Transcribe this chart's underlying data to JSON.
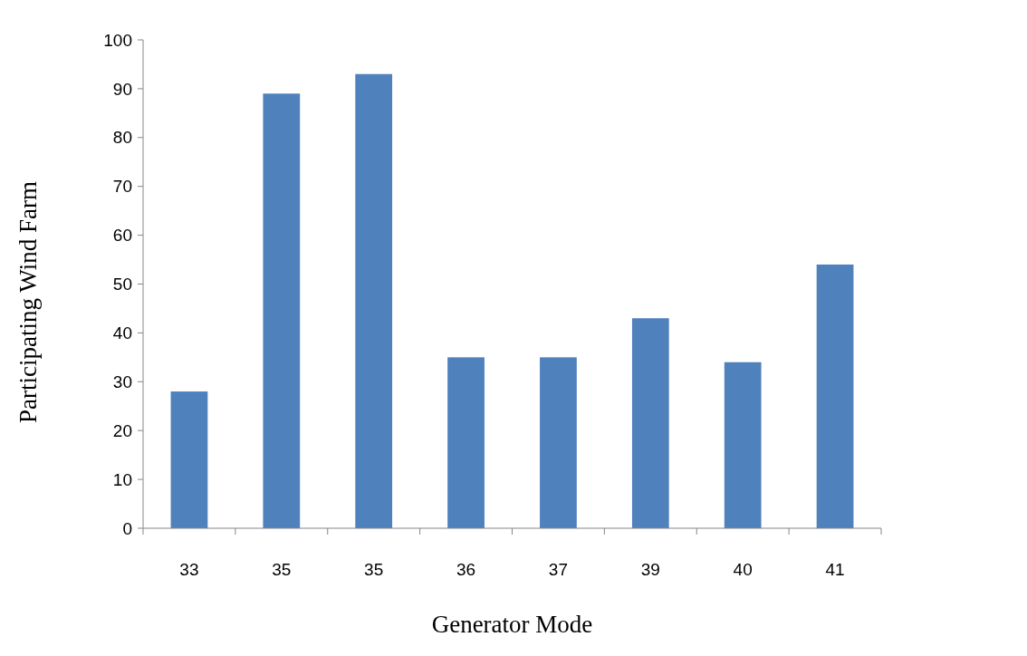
{
  "chart_data": {
    "type": "bar",
    "xlabel": "Generator Mode",
    "ylabel": "Participating Wind Farm",
    "categories": [
      "33",
      "35",
      "35",
      "36",
      "37",
      "39",
      "40",
      "41"
    ],
    "values": [
      28,
      89,
      93,
      35,
      35,
      43,
      34,
      54
    ],
    "color": "#4f81bd",
    "ylim": [
      0,
      100
    ],
    "yticks": [
      0,
      10,
      20,
      30,
      40,
      50,
      60,
      70,
      80,
      90,
      100
    ],
    "grid": false
  }
}
